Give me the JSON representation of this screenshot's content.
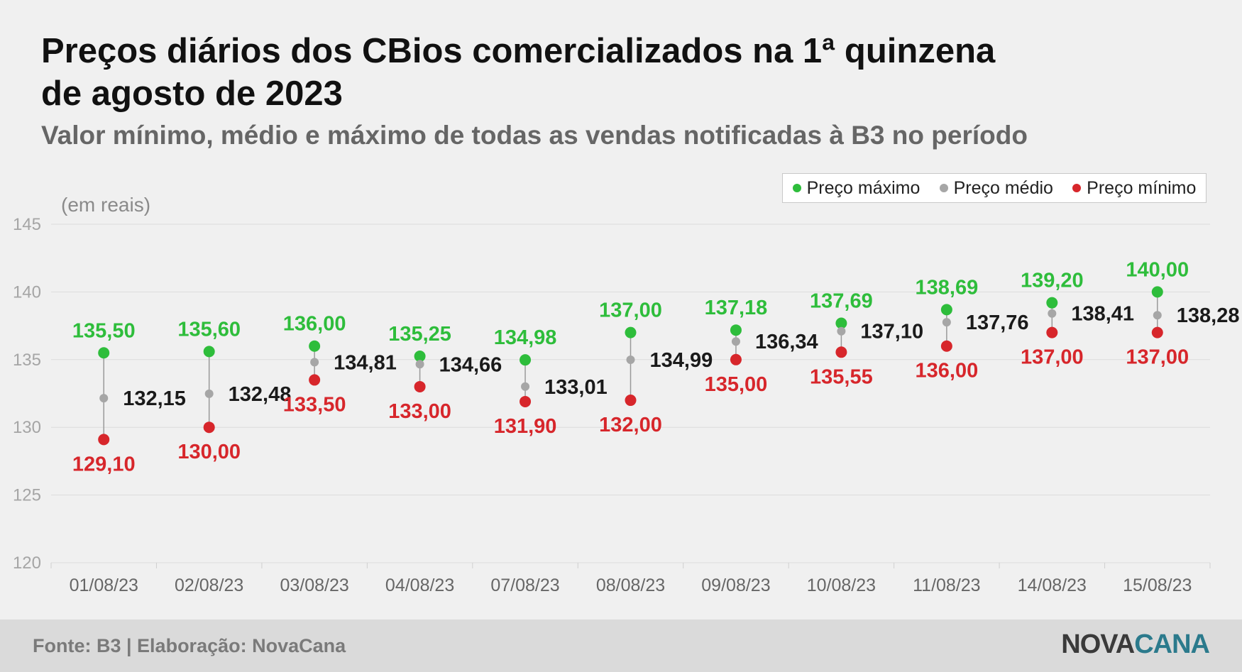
{
  "header": {
    "title": "Preços diários dos CBios comercializados na 1ª quinzena de agosto de 2023",
    "subtitle": "Valor mínimo, médio e máximo de todas as vendas notificadas à B3 no período"
  },
  "footer": {
    "source": "Fonte: B3 | Elaboração: NovaCana",
    "logo_part1": "NOVA",
    "logo_part2": "CANA"
  },
  "colors": {
    "max": "#2ebd3b",
    "avg": "#a6a6a6",
    "min": "#d7262b",
    "avg_label": "#1a1a1a"
  },
  "chart_data": {
    "type": "scatter",
    "unit_label": "(em reais)",
    "categories": [
      "01/08/23",
      "02/08/23",
      "03/08/23",
      "04/08/23",
      "07/08/23",
      "08/08/23",
      "09/08/23",
      "10/08/23",
      "11/08/23",
      "14/08/23",
      "15/08/23"
    ],
    "series": [
      {
        "name": "Preço máximo",
        "values": [
          135.5,
          135.6,
          136.0,
          135.25,
          134.98,
          137.0,
          137.18,
          137.69,
          138.69,
          139.2,
          140.0
        ],
        "labels": [
          "135,50",
          "135,60",
          "136,00",
          "135,25",
          "134,98",
          "137,00",
          "137,18",
          "137,69",
          "138,69",
          "139,20",
          "140,00"
        ]
      },
      {
        "name": "Preço médio",
        "values": [
          132.15,
          132.48,
          134.81,
          134.66,
          133.01,
          134.99,
          136.34,
          137.1,
          137.76,
          138.41,
          138.28
        ],
        "labels": [
          "132,15",
          "132,48",
          "134,81",
          "134,66",
          "133,01",
          "134,99",
          "136,34",
          "137,10",
          "137,76",
          "138,41",
          "138,28"
        ]
      },
      {
        "name": "Preço mínimo",
        "values": [
          129.1,
          130.0,
          133.5,
          133.0,
          131.9,
          132.0,
          135.0,
          135.55,
          136.0,
          137.0,
          137.0
        ],
        "labels": [
          "129,10",
          "130,00",
          "133,50",
          "133,00",
          "131,90",
          "132,00",
          "135,00",
          "135,55",
          "136,00",
          "137,00",
          "137,00"
        ]
      }
    ],
    "yticks": [
      "120",
      "125",
      "130",
      "135",
      "140",
      "145"
    ],
    "ylim": [
      120,
      145
    ],
    "grid": true,
    "legend_position": "top-right"
  }
}
